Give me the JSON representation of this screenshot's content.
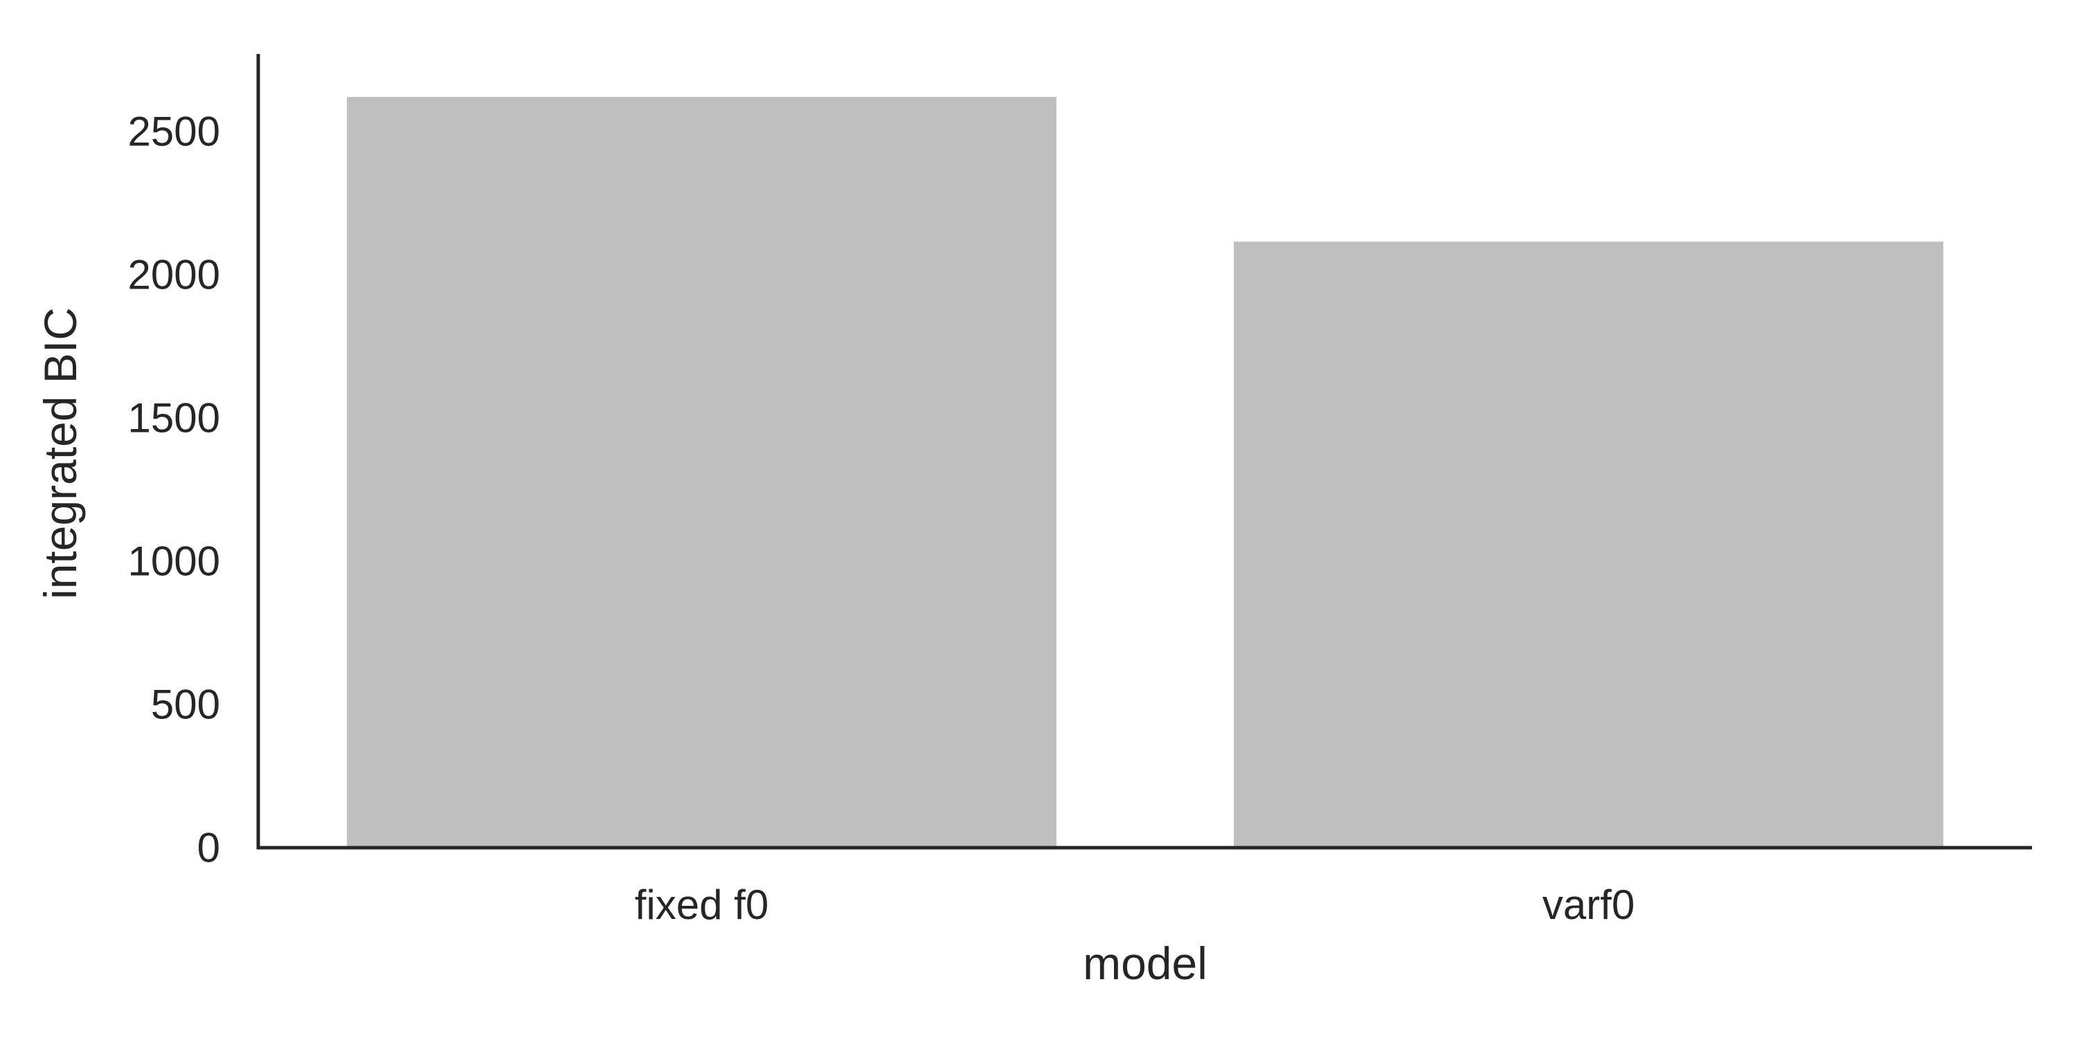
{
  "chart_data": {
    "type": "bar",
    "categories": [
      "fixed f0",
      "varf0"
    ],
    "values": [
      2620,
      2115
    ],
    "title": "",
    "xlabel": "model",
    "ylabel": "integrated BIC",
    "ylim": [
      0,
      2770
    ],
    "yticks": [
      0,
      500,
      1000,
      1500,
      2000,
      2500
    ],
    "ytick_labels": [
      "0",
      "500",
      "1000",
      "1500",
      "2000",
      "2500"
    ],
    "grid": false,
    "legend": "none",
    "bar_color": "#bfbfbf",
    "axis_color": "#262626"
  }
}
